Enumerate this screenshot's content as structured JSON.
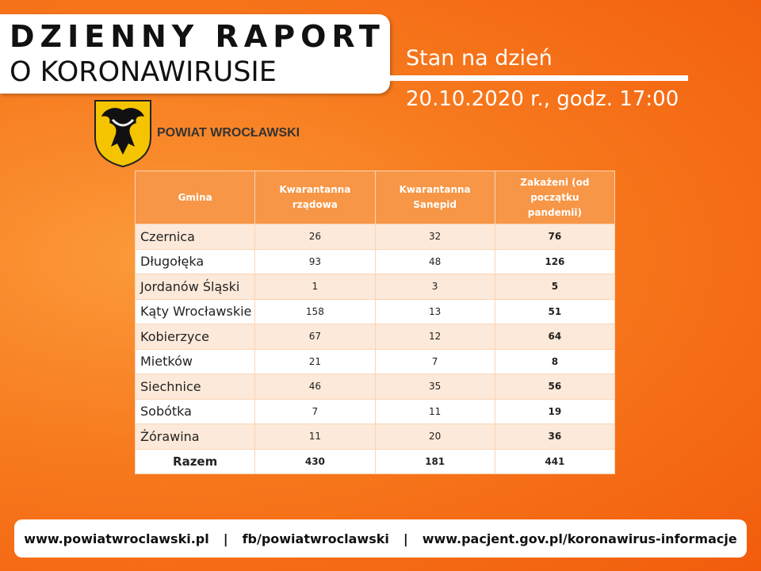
{
  "header": {
    "title_line1": "DZIENNY RAPORT",
    "title_line2": "O KORONAWIRUSIE",
    "status_label": "Stan na dzień",
    "date": "20.10.2020 r., godz. 17:00"
  },
  "logo": {
    "text": "POWIAT WROCŁAWSKI"
  },
  "table": {
    "columns": [
      "Gmina",
      "Kwarantanna rządowa",
      "Kwarantanna Sanepid",
      "Zakażeni (od początku pandemii)"
    ],
    "rows": [
      [
        "Czernica",
        26,
        32,
        76
      ],
      [
        "Długołęka",
        93,
        48,
        126
      ],
      [
        "Jordanów Śląski",
        1,
        3,
        5
      ],
      [
        "Kąty Wrocławskie",
        158,
        13,
        51
      ],
      [
        "Kobierzyce",
        67,
        12,
        64
      ],
      [
        "Mietków",
        21,
        7,
        8
      ],
      [
        "Siechnice",
        46,
        35,
        56
      ],
      [
        "Sobótka",
        7,
        11,
        19
      ],
      [
        "Żórawina",
        11,
        20,
        36
      ]
    ],
    "total": [
      "Razem",
      430,
      181,
      441
    ]
  },
  "footer": {
    "links": [
      "www.powiatwroclawski.pl",
      "fb/powiatwroclawski",
      "www.pacjent.gov.pl/koronawirus-informacje"
    ],
    "separator": "|"
  }
}
